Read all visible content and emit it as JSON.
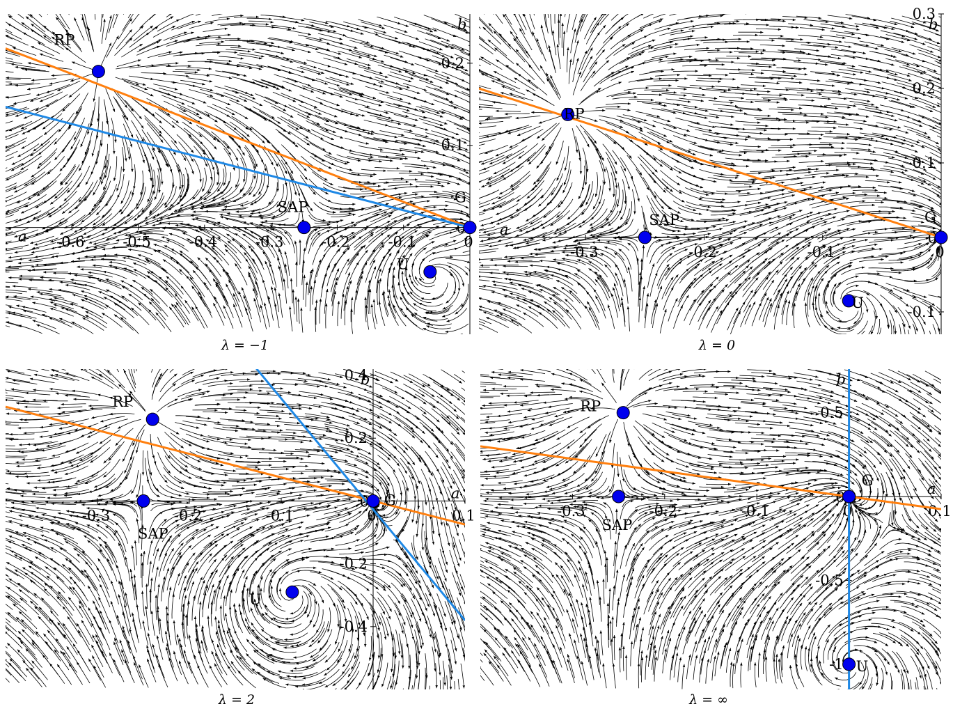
{
  "figure": {
    "captions": [
      "λ = −1",
      "λ = 0",
      "λ = 2",
      "λ = ∞"
    ]
  },
  "colors": {
    "arrow": "#000000",
    "axis": "#000000",
    "point": "#0000ee",
    "orange_line": "#ff7f0e",
    "blue_line": "#1e88e5"
  },
  "chart_data": [
    {
      "type": "scatter",
      "title": "λ = −1",
      "xlabel": "a",
      "ylabel": "b",
      "xlim": [
        -0.7,
        0.0
      ],
      "ylim": [
        -0.13,
        0.26
      ],
      "x_ticks": [
        -0.6,
        -0.5,
        -0.4,
        -0.3,
        -0.2,
        -0.1,
        0
      ],
      "x_tick_labels": [
        "-0.6",
        "-0.5",
        "-0.4",
        "-0.3",
        "-0.2",
        "-0.1",
        "0"
      ],
      "y_ticks": [
        0.2,
        0.1,
        0
      ],
      "y_tick_labels": [
        "0.2",
        "0.1",
        "0"
      ],
      "points": [
        {
          "name": "RP",
          "x": -0.56,
          "y": 0.19
        },
        {
          "name": "SAP",
          "x": -0.25,
          "y": 0.0
        },
        {
          "name": "G",
          "x": 0.0,
          "y": 0.0
        },
        {
          "name": "U",
          "x": -0.06,
          "y": -0.054
        }
      ],
      "lines": [
        {
          "color": "orange",
          "points": [
            [
              -0.7,
              0.218
            ],
            [
              0.0,
              0.0
            ]
          ]
        },
        {
          "color": "blue",
          "points": [
            [
              -0.7,
              0.147
            ],
            [
              0.0,
              0.0
            ]
          ]
        }
      ]
    },
    {
      "type": "scatter",
      "title": "λ = 0",
      "xlabel": "a",
      "ylabel": "b",
      "xlim": [
        -0.39,
        0.0
      ],
      "ylim": [
        -0.13,
        0.3
      ],
      "x_ticks": [
        -0.3,
        -0.2,
        -0.1,
        0
      ],
      "x_tick_labels": [
        "-0.3",
        "-0.2",
        "-0.1",
        "0"
      ],
      "y_ticks": [
        0.3,
        0.2,
        0.1,
        0,
        -0.1
      ],
      "y_tick_labels": [
        "0.3",
        "0.2",
        "0.1",
        "0",
        "-0.1"
      ],
      "points": [
        {
          "name": "RP",
          "x": -0.315,
          "y": 0.165
        },
        {
          "name": "SAP",
          "x": -0.25,
          "y": 0.0
        },
        {
          "name": "G",
          "x": 0.0,
          "y": 0.0
        },
        {
          "name": "U",
          "x": -0.078,
          "y": -0.085
        }
      ],
      "lines": [
        {
          "color": "orange",
          "points": [
            [
              -0.39,
              0.2
            ],
            [
              0.0,
              0.0
            ]
          ]
        }
      ]
    },
    {
      "type": "scatter",
      "title": "λ = 2",
      "xlabel": "a",
      "ylabel": "b",
      "xlim": [
        -0.4,
        0.1
      ],
      "ylim": [
        -0.6,
        0.42
      ],
      "x_ticks": [
        -0.3,
        -0.2,
        -0.1,
        0,
        0.1
      ],
      "x_tick_labels": [
        "-0.3",
        "-0.2",
        "-0.1",
        "0",
        "0.1"
      ],
      "y_ticks": [
        0.4,
        0.2,
        0,
        -0.2,
        -0.4
      ],
      "y_tick_labels": [
        "0.4",
        "0.2",
        "0",
        "-0.2",
        "-0.4"
      ],
      "points": [
        {
          "name": "RP",
          "x": -0.24,
          "y": 0.26
        },
        {
          "name": "SAP",
          "x": -0.25,
          "y": 0.0
        },
        {
          "name": "G",
          "x": 0.0,
          "y": 0.0
        },
        {
          "name": "U",
          "x": -0.088,
          "y": -0.29
        }
      ],
      "lines": [
        {
          "color": "orange",
          "points": [
            [
              -0.4,
              0.3
            ],
            [
              0.1,
              -0.075
            ]
          ]
        },
        {
          "color": "blue",
          "points": [
            [
              -0.135,
              0.45
            ],
            [
              0.1,
              -0.38
            ]
          ]
        }
      ]
    },
    {
      "type": "scatter",
      "title": "λ = ∞",
      "xlabel": "a",
      "ylabel": "b",
      "xlim": [
        -0.4,
        0.1
      ],
      "ylim": [
        -1.15,
        0.76
      ],
      "x_ticks": [
        -0.3,
        -0.2,
        -0.1,
        0,
        0.1
      ],
      "x_tick_labels": [
        "-0.3",
        "-0.2",
        "-0.1",
        "0",
        "0.1"
      ],
      "y_ticks": [
        0.5,
        0,
        -0.5,
        -1
      ],
      "y_tick_labels": [
        "0.5",
        "0",
        "-0.5",
        "-1"
      ],
      "points": [
        {
          "name": "RP",
          "x": -0.245,
          "y": 0.5
        },
        {
          "name": "SAP",
          "x": -0.25,
          "y": 0.0
        },
        {
          "name": "G",
          "x": 0.0,
          "y": 0.0
        },
        {
          "name": "U",
          "x": 0.0,
          "y": -1.0
        }
      ],
      "lines": [
        {
          "color": "orange",
          "points": [
            [
              -0.4,
              0.3
            ],
            [
              0.1,
              -0.075
            ]
          ]
        },
        {
          "color": "blue",
          "points": [
            [
              0.0,
              0.76
            ],
            [
              0.0,
              -1.15
            ]
          ]
        }
      ]
    }
  ]
}
